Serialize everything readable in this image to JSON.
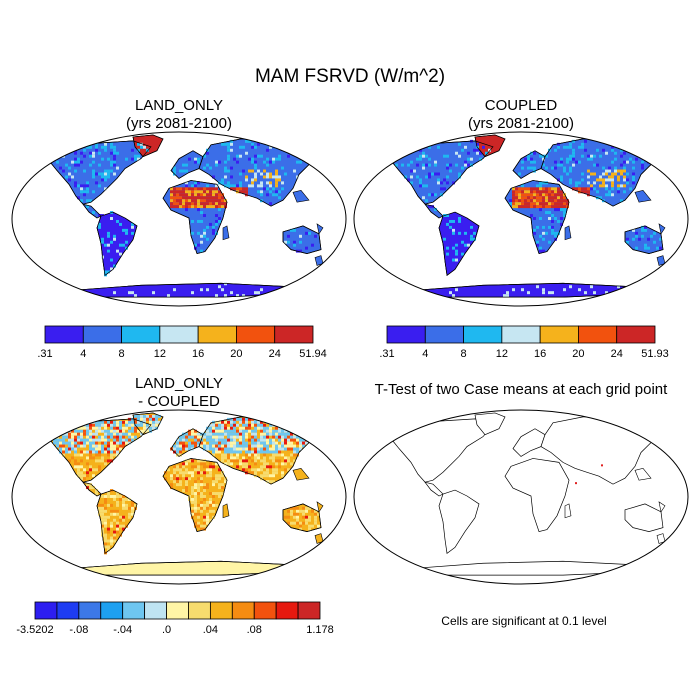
{
  "chart_data": {
    "type": "heatmap",
    "title": "MAM FSRVD (W/m^2)",
    "note": "Cells are significant at 0.1 level",
    "panels": [
      {
        "id": "land_only",
        "title_lines": [
          "LAND_ONLY",
          "(yrs 2081-2100)"
        ],
        "kind": "field",
        "colorbar": {
          "labels": [
            ".31",
            "4",
            "8",
            "12",
            "16",
            "20",
            "24",
            "51.94"
          ],
          "colors": [
            "#3a1ef0",
            "#3b6ee8",
            "#1fb8f0",
            "#c6e6f2",
            "#f5b21c",
            "#f2520e",
            "#cc2626"
          ]
        }
      },
      {
        "id": "coupled",
        "title_lines": [
          "COUPLED",
          "(yrs 2081-2100)"
        ],
        "kind": "field",
        "colorbar": {
          "labels": [
            ".31",
            "4",
            "8",
            "12",
            "16",
            "20",
            "24",
            "51.93"
          ],
          "colors": [
            "#3a1ef0",
            "#3b6ee8",
            "#1fb8f0",
            "#c6e6f2",
            "#f5b21c",
            "#f2520e",
            "#cc2626"
          ]
        }
      },
      {
        "id": "difference",
        "title_lines": [
          "LAND_ONLY",
          "- COUPLED"
        ],
        "kind": "difference",
        "colorbar": {
          "labels": [
            "-3.5202",
            "-.08",
            "-.04",
            ".0",
            ".04",
            ".08",
            "1.178"
          ],
          "colors": [
            "#2d1ef0",
            "#1e3cf2",
            "#3c78e8",
            "#1ea0f0",
            "#6ec6f0",
            "#bfe4f2",
            "#fff5a6",
            "#f7dc6e",
            "#f5b21c",
            "#f58c12",
            "#f2520e",
            "#e6190f",
            "#cc2626"
          ]
        }
      },
      {
        "id": "ttest",
        "title_lines": [
          "T-Test of two Case means at each grid point"
        ],
        "kind": "ttest"
      }
    ]
  }
}
